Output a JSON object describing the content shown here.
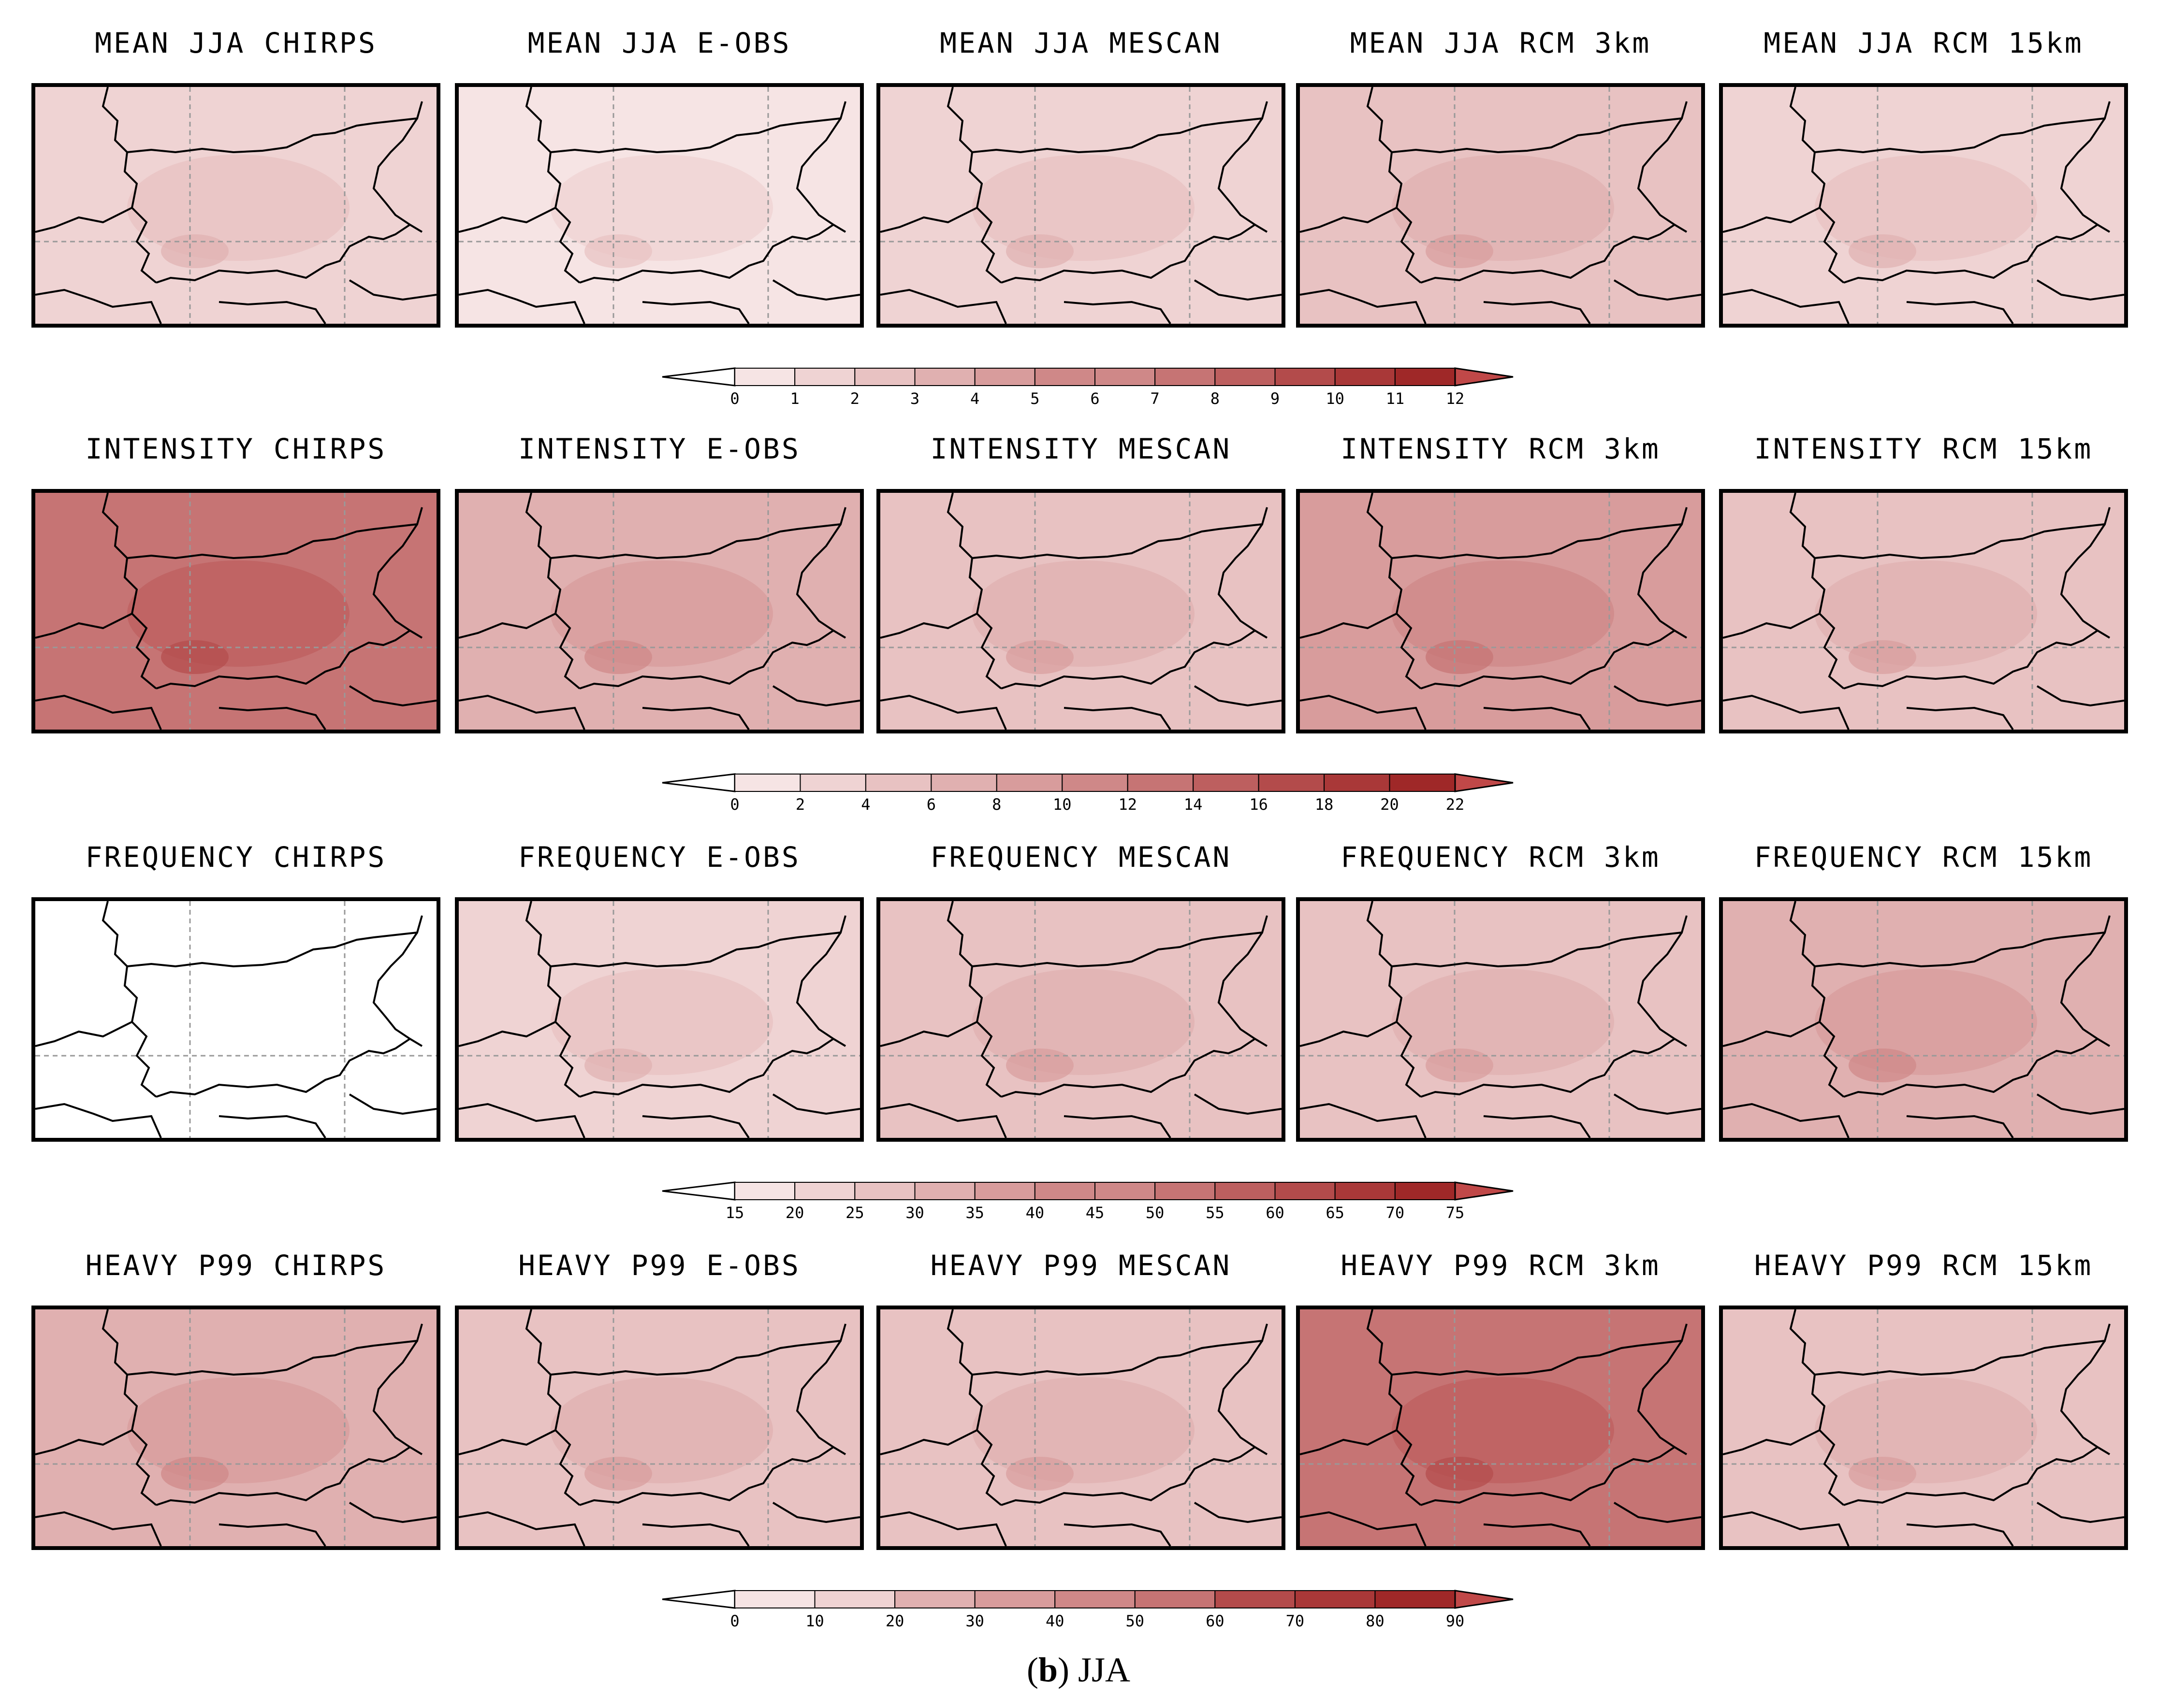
{
  "rows": [
    {
      "titles": [
        "MEAN JJA CHIRPS",
        "MEAN JJA E-OBS",
        "MEAN JJA MESCAN",
        "MEAN JJA RCM 3km",
        "MEAN JJA RCM 15km"
      ],
      "colorbar": [
        "0",
        "1",
        "2",
        "3",
        "4",
        "5",
        "6",
        "7",
        "8",
        "9",
        "10",
        "11",
        "12"
      ],
      "shades": [
        2,
        1,
        2,
        3,
        2
      ]
    },
    {
      "titles": [
        "INTENSITY CHIRPS",
        "INTENSITY E-OBS",
        "INTENSITY MESCAN",
        "INTENSITY RCM 3km",
        "INTENSITY RCM 15km"
      ],
      "colorbar": [
        "0",
        "2",
        "4",
        "6",
        "8",
        "10",
        "12",
        "14",
        "16",
        "18",
        "20",
        "22"
      ],
      "shades": [
        7,
        4,
        3,
        5,
        3
      ]
    },
    {
      "titles": [
        "FREQUENCY CHIRPS",
        "FREQUENCY E-OBS",
        "FREQUENCY MESCAN",
        "FREQUENCY RCM 3km",
        "FREQUENCY RCM 15km"
      ],
      "colorbar": [
        "15",
        "20",
        "25",
        "30",
        "35",
        "40",
        "45",
        "50",
        "55",
        "60",
        "65",
        "70",
        "75"
      ],
      "shades": [
        0,
        2,
        3,
        3,
        4
      ]
    },
    {
      "titles": [
        "HEAVY P99 CHIRPS",
        "HEAVY P99 E-OBS",
        "HEAVY P99 MESCAN",
        "HEAVY P99 RCM 3km",
        "HEAVY P99 RCM 15km"
      ],
      "colorbar": [
        "0",
        "10",
        "20",
        "30",
        "40",
        "50",
        "60",
        "70",
        "80",
        "90"
      ],
      "shades": [
        4,
        3,
        3,
        7,
        3
      ]
    }
  ],
  "palette": [
    "#ffffff",
    "#f6e4e4",
    "#efd3d3",
    "#e8c2c2",
    "#e0b0b0",
    "#d89c9c",
    "#cf8888",
    "#c67474",
    "#bd5f5f",
    "#b34b4b",
    "#a93838",
    "#9f2828",
    "#c04848"
  ],
  "caption": {
    "letter": "b",
    "season": "JJA"
  }
}
